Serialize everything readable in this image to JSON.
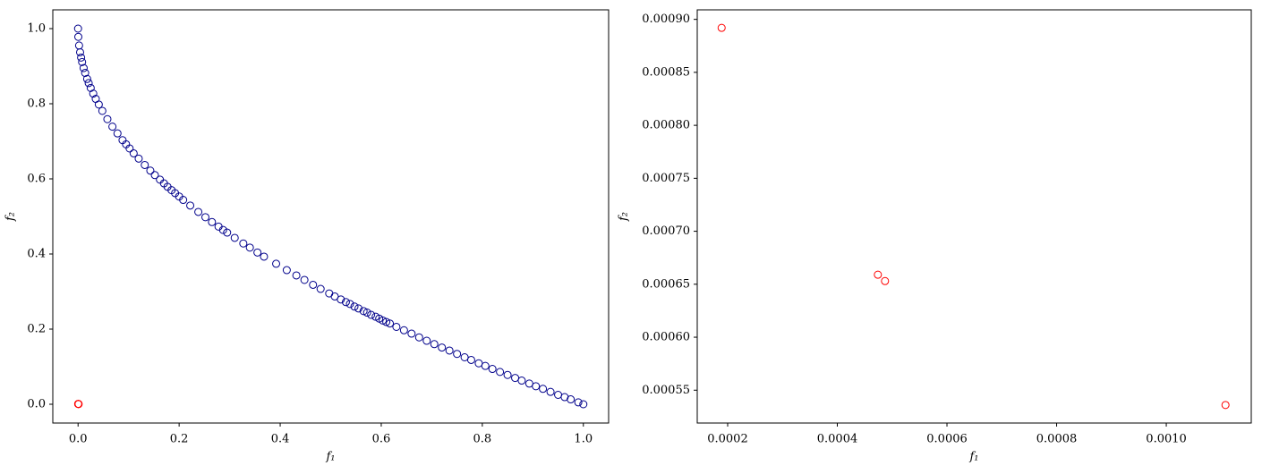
{
  "chart_data": [
    {
      "type": "scatter",
      "x_label": "f₁",
      "y_label": "f₂",
      "xlim": [
        -0.05,
        1.05
      ],
      "ylim": [
        -0.05,
        1.05
      ],
      "xticks": [
        {
          "value": 0,
          "label": "0.0"
        },
        0.2,
        0.4,
        0.6,
        0.8,
        {
          "value": 1,
          "label": "1.0"
        }
      ],
      "yticks": [
        {
          "value": 0,
          "label": "0.0"
        },
        0.2,
        0.4,
        0.6,
        0.8,
        {
          "value": 1,
          "label": "1.0"
        }
      ],
      "series": [
        {
          "color": "#00008b",
          "x": [
            0,
            0.0005,
            0.002,
            0.004,
            0.006,
            0.008,
            0.011,
            0.014,
            0.018,
            0.021,
            0.025,
            0.03,
            0.035,
            0.041,
            0.048,
            0.058,
            0.068,
            0.078,
            0.088,
            0.095,
            0.102,
            0.11,
            0.12,
            0.132,
            0.143,
            0.152,
            0.162,
            0.17,
            0.177,
            0.185,
            0.192,
            0.2,
            0.208,
            0.222,
            0.238,
            0.252,
            0.265,
            0.278,
            0.287,
            0.295,
            0.31,
            0.327,
            0.34,
            0.355,
            0.368,
            0.392,
            0.413,
            0.432,
            0.448,
            0.465,
            0.48,
            0.497,
            0.508,
            0.52,
            0.53,
            0.538,
            0.547,
            0.555,
            0.565,
            0.572,
            0.58,
            0.589,
            0.596,
            0.603,
            0.61,
            0.617,
            0.63,
            0.645,
            0.66,
            0.675,
            0.69,
            0.705,
            0.72,
            0.735,
            0.75,
            0.765,
            0.778,
            0.793,
            0.806,
            0.82,
            0.835,
            0.85,
            0.865,
            0.878,
            0.893,
            0.906,
            0.92,
            0.935,
            0.95,
            0.963,
            0.975,
            0.99,
            1.0
          ],
          "values": [
            1.0,
            0.978,
            0.955,
            0.937,
            0.923,
            0.911,
            0.895,
            0.882,
            0.866,
            0.855,
            0.842,
            0.827,
            0.813,
            0.798,
            0.781,
            0.759,
            0.739,
            0.721,
            0.703,
            0.692,
            0.681,
            0.668,
            0.654,
            0.637,
            0.622,
            0.61,
            0.598,
            0.588,
            0.579,
            0.57,
            0.562,
            0.553,
            0.544,
            0.529,
            0.512,
            0.498,
            0.485,
            0.473,
            0.464,
            0.457,
            0.443,
            0.428,
            0.417,
            0.404,
            0.393,
            0.374,
            0.357,
            0.343,
            0.331,
            0.318,
            0.307,
            0.295,
            0.287,
            0.279,
            0.272,
            0.267,
            0.26,
            0.255,
            0.248,
            0.244,
            0.238,
            0.233,
            0.228,
            0.223,
            0.219,
            0.215,
            0.206,
            0.197,
            0.188,
            0.178,
            0.169,
            0.16,
            0.151,
            0.143,
            0.134,
            0.125,
            0.118,
            0.109,
            0.102,
            0.094,
            0.086,
            0.078,
            0.07,
            0.063,
            0.055,
            0.048,
            0.041,
            0.033,
            0.025,
            0.019,
            0.013,
            0.005,
            0.0
          ]
        },
        {
          "color": "#ff0000",
          "x": [
            0.000189,
            0.000474,
            0.000487,
            0.001108
          ],
          "values": [
            0.000892,
            0.000659,
            0.000653,
            0.000536
          ]
        }
      ]
    },
    {
      "type": "scatter",
      "x_label": "f₁",
      "y_label": "f₂",
      "xlim": [
        0.0001445,
        0.001155
      ],
      "ylim": [
        0.000519,
        0.000909
      ],
      "xticks": [
        0.0002,
        0.0004,
        0.0006,
        0.0008,
        {
          "value": 0.001,
          "label": "0.0010"
        }
      ],
      "yticks": [
        0.00055,
        {
          "value": 0.0006,
          "label": "0.00060"
        },
        0.00065,
        {
          "value": 0.0007,
          "label": "0.00070"
        },
        0.00075,
        {
          "value": 0.0008,
          "label": "0.00080"
        },
        0.00085,
        {
          "value": 0.0009,
          "label": "0.00090"
        }
      ],
      "series": [
        {
          "color": "#ff0000",
          "x": [
            0.000189,
            0.000474,
            0.000487,
            0.001108
          ],
          "values": [
            0.000892,
            0.000659,
            0.000653,
            0.000536
          ]
        }
      ]
    }
  ]
}
